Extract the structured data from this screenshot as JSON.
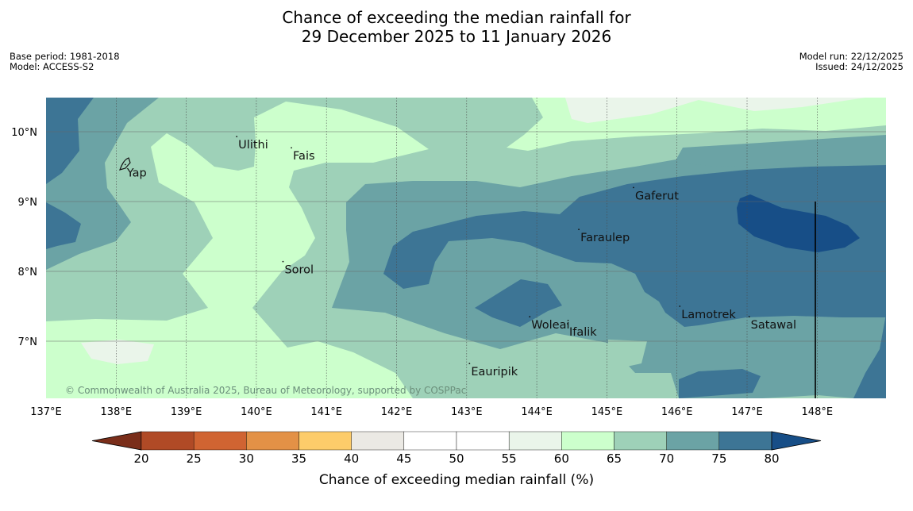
{
  "header": {
    "title_line1": "Chance of exceeding the median rainfall for",
    "title_line2": "29 December 2025 to 11 January 2026",
    "base_period": "Base period: 1981-2018",
    "model": "Model: ACCESS-S2",
    "model_run": "Model run: 22/12/2025",
    "issued": "Issued: 24/12/2025"
  },
  "map": {
    "lon_range": [
      137,
      149
    ],
    "lat_range": [
      6.2,
      10.5
    ],
    "lon_ticks": [
      "137°E",
      "138°E",
      "139°E",
      "140°E",
      "141°E",
      "142°E",
      "143°E",
      "144°E",
      "145°E",
      "146°E",
      "147°E",
      "148°E"
    ],
    "lat_ticks": [
      "10°N",
      "9°N",
      "8°N",
      "7°N"
    ],
    "places": [
      {
        "name": "Ulithi",
        "lon": 139.72,
        "lat": 9.93
      },
      {
        "name": "Fais",
        "lon": 140.5,
        "lat": 9.77
      },
      {
        "name": "Yap",
        "lon": 138.13,
        "lat": 9.53
      },
      {
        "name": "Gaferut",
        "lon": 145.38,
        "lat": 9.2
      },
      {
        "name": "Faraulep",
        "lon": 144.6,
        "lat": 8.6
      },
      {
        "name": "Sorol",
        "lon": 140.38,
        "lat": 8.14
      },
      {
        "name": "Lamotrek",
        "lon": 146.04,
        "lat": 7.5
      },
      {
        "name": "Woleai",
        "lon": 143.9,
        "lat": 7.35
      },
      {
        "name": "Ifalik",
        "lon": 144.44,
        "lat": 7.25
      },
      {
        "name": "Satawal",
        "lon": 147.03,
        "lat": 7.35
      },
      {
        "name": "Eauripik",
        "lon": 143.04,
        "lat": 6.68
      }
    ],
    "copyright": "© Commonwealth of Australia 2025, Bureau of Meteorology, supported by COSPPac"
  },
  "legend": {
    "title": "Chance of exceeding median rainfall (%)",
    "ticks": [
      "20",
      "25",
      "30",
      "35",
      "40",
      "45",
      "50",
      "55",
      "60",
      "65",
      "70",
      "75",
      "80"
    ],
    "colors": [
      "#7a2e1a",
      "#b04a26",
      "#d06432",
      "#e39146",
      "#fdcc6a",
      "#ebe9e4",
      "#ffffff",
      "#ffffff",
      "#eaf5ea",
      "#ccffcc",
      "#9ed1b8",
      "#6ba3a5",
      "#3d7595",
      "#174e87"
    ]
  }
}
